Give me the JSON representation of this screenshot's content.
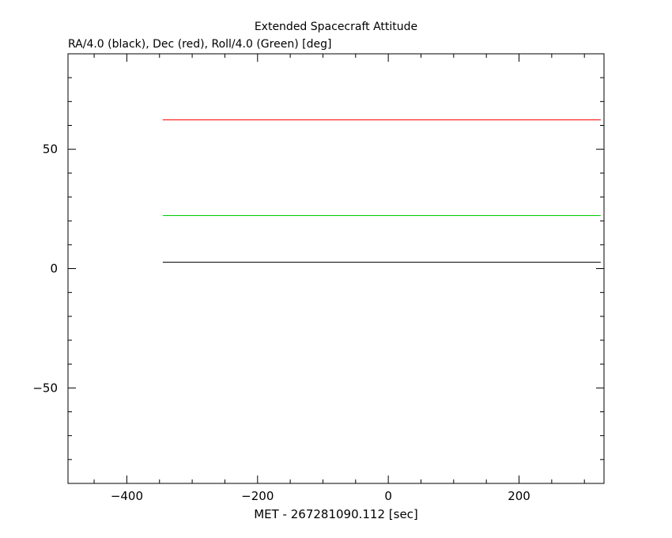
{
  "chart_data": {
    "type": "line",
    "title": "Extended Spacecraft Attitude",
    "ylabel": "RA/4.0 (black), Dec (red), Roll/4.0 (Green) [deg]",
    "xlabel": "MET - 267281090.112 [sec]",
    "xlim": [
      -490,
      330
    ],
    "ylim": [
      -90,
      90
    ],
    "x_ticks": [
      -400,
      -200,
      0,
      200
    ],
    "x_tick_labels": [
      "−400",
      "−200",
      "0",
      "200"
    ],
    "y_ticks": [
      -50,
      0,
      50
    ],
    "y_tick_labels": [
      "−50",
      "0",
      "50"
    ],
    "grid": false,
    "series": [
      {
        "color": "#000000",
        "x": [
          -345,
          325
        ],
        "y": [
          2.7,
          2.7
        ]
      },
      {
        "color": "#ff0000",
        "x": [
          -345,
          325
        ],
        "y": [
          62.3,
          62.3
        ]
      },
      {
        "color": "#00cc00",
        "x": [
          -345,
          325
        ],
        "y": [
          22.2,
          22.2
        ]
      }
    ]
  }
}
